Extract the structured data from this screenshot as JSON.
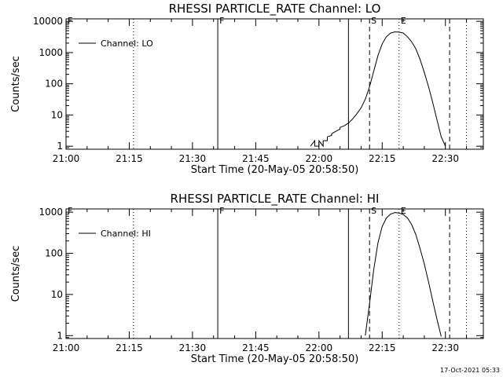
{
  "chart_data": [
    {
      "type": "line",
      "title": "RHESSI PARTICLE_RATE Channel: LO",
      "xlabel": "Start Time (20-May-05 20:58:50)",
      "ylabel": "Counts/sec",
      "y_scale": "log",
      "ylim": [
        0.8,
        12000
      ],
      "yticks": [
        {
          "value": 1,
          "label": "1"
        },
        {
          "value": 10,
          "label": "10"
        },
        {
          "value": 100,
          "label": "100"
        },
        {
          "value": 1000,
          "label": "1000"
        },
        {
          "value": 10000,
          "label": "10000"
        }
      ],
      "xlim": [
        "21:00",
        "22:39"
      ],
      "xticks": [
        "21:00",
        "21:15",
        "21:30",
        "21:45",
        "22:00",
        "22:15",
        "22:30"
      ],
      "legend": {
        "placement": "top-left",
        "entries": [
          "Channel: LO"
        ]
      },
      "series": [
        {
          "name": "Channel: LO",
          "x": [
            "21:58",
            "21:59",
            "21:59",
            "21:59",
            "22:00",
            "22:00",
            "22:00",
            "22:01",
            "22:01",
            "22:01",
            "22:02",
            "22:02",
            "22:03",
            "22:03",
            "22:04",
            "22:05",
            "22:05",
            "22:06",
            "22:07",
            "22:08",
            "22:09",
            "22:10",
            "22:11",
            "22:12",
            "22:13",
            "22:14",
            "22:15",
            "22:16",
            "22:17",
            "22:18",
            "22:19",
            "22:20",
            "22:21",
            "22:22",
            "22:23",
            "22:24",
            "22:25",
            "22:26",
            "22:27",
            "22:28",
            "22:29",
            "22:30"
          ],
          "values": [
            1,
            1.5,
            1.5,
            1,
            1,
            1.5,
            1.5,
            1,
            1.5,
            1.5,
            1.5,
            2,
            2.2,
            2.5,
            3,
            3.5,
            4,
            4.5,
            5.5,
            7.5,
            11,
            17,
            32,
            80,
            250,
            800,
            1900,
            3200,
            4200,
            4600,
            4500,
            4200,
            3200,
            2200,
            1300,
            600,
            230,
            80,
            25,
            7,
            2,
            1
          ]
        }
      ],
      "annotations": [
        {
          "text": "F",
          "x": "21:00",
          "style": "solid"
        },
        {
          "text": "",
          "x": "21:16",
          "style": "dotted"
        },
        {
          "text": "F",
          "x": "21:36",
          "style": "solid"
        },
        {
          "text": "",
          "x": "22:07",
          "style": "solid"
        },
        {
          "text": "S",
          "x": "22:12",
          "style": "dashed"
        },
        {
          "text": "E",
          "x": "22:19",
          "style": "dotted"
        },
        {
          "text": "",
          "x": "22:31",
          "style": "dashed"
        },
        {
          "text": "",
          "x": "22:35",
          "style": "dotted"
        }
      ]
    },
    {
      "type": "line",
      "title": "RHESSI PARTICLE_RATE Channel: HI",
      "xlabel": "Start Time (20-May-05 20:58:50)",
      "ylabel": "Counts/sec",
      "y_scale": "log",
      "ylim": [
        0.85,
        1200
      ],
      "yticks": [
        {
          "value": 1,
          "label": "1"
        },
        {
          "value": 10,
          "label": "10"
        },
        {
          "value": 100,
          "label": "100"
        },
        {
          "value": 1000,
          "label": "1000"
        }
      ],
      "xlim": [
        "21:00",
        "22:39"
      ],
      "xticks": [
        "21:00",
        "21:15",
        "21:30",
        "21:45",
        "22:00",
        "22:15",
        "22:30"
      ],
      "legend": {
        "placement": "top-left",
        "entries": [
          "Channel: HI"
        ]
      },
      "series": [
        {
          "name": "Channel: HI",
          "x": [
            "22:11",
            "22:12",
            "22:13",
            "22:14",
            "22:15",
            "22:16",
            "22:17",
            "22:18",
            "22:19",
            "22:20",
            "22:21",
            "22:22",
            "22:23",
            "22:24",
            "22:25",
            "22:26",
            "22:27",
            "22:28",
            "22:29"
          ],
          "values": [
            1,
            6,
            40,
            180,
            450,
            720,
            900,
            980,
            950,
            880,
            720,
            500,
            280,
            130,
            55,
            20,
            7,
            2.5,
            0.95
          ]
        }
      ],
      "annotations": [
        {
          "text": "F",
          "x": "21:00",
          "style": "solid"
        },
        {
          "text": "",
          "x": "21:16",
          "style": "dotted"
        },
        {
          "text": "F",
          "x": "21:36",
          "style": "solid"
        },
        {
          "text": "",
          "x": "22:07",
          "style": "solid"
        },
        {
          "text": "S",
          "x": "22:12",
          "style": "dashed"
        },
        {
          "text": "E",
          "x": "22:19",
          "style": "dotted"
        },
        {
          "text": "",
          "x": "22:31",
          "style": "dashed"
        },
        {
          "text": "",
          "x": "22:35",
          "style": "dotted"
        }
      ]
    }
  ],
  "footer": {
    "timestamp": "17-Oct-2021 05:33"
  }
}
